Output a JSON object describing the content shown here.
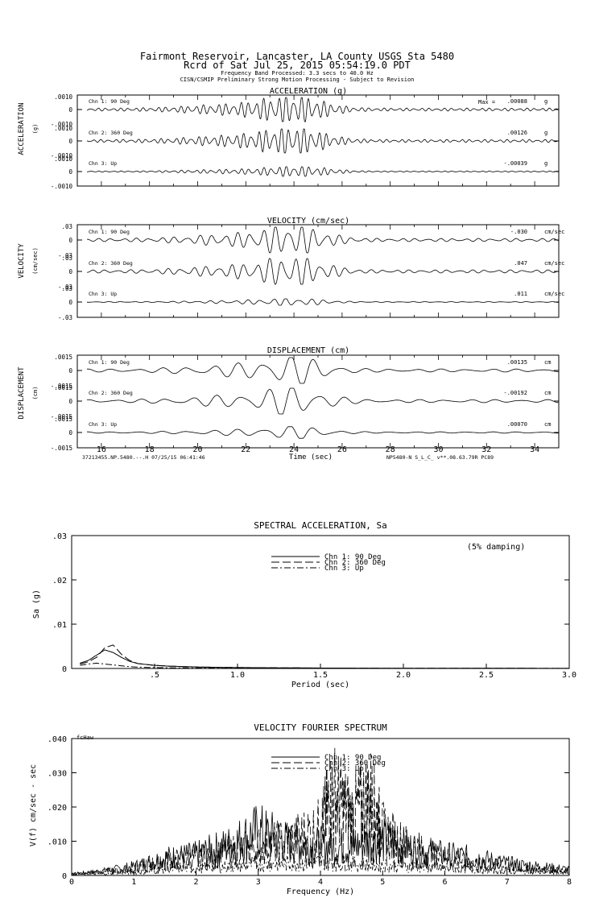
{
  "header": {
    "line1": "Fairmont Reservoir, Lancaster, LA County    USGS Sta 5480",
    "line2": "Rcrd of Sat Jul 25, 2015 05:54:19.0 PDT",
    "line3": "Frequency Band Processed: 3.3 secs to 40.0 Hz",
    "line4": "CISN/CSMIP Preliminary Strong Motion Processing - Subject to Revision"
  },
  "time_axis": {
    "ticks": [
      "16",
      "18",
      "20",
      "22",
      "24",
      "26",
      "28",
      "30",
      "32",
      "34"
    ],
    "xlabel": "Time (sec)",
    "footer_left": "37213455.NP.5480.--.H 07/25/15 06:41:46",
    "footer_right": "NP5480-N  S_L_C_  v**.08.63.79R PC89"
  },
  "colors": {
    "ink": "#000000",
    "background": "#ffffff"
  },
  "chart_data": [
    {
      "type": "line",
      "title": "ACCELERATION (g)",
      "ylabel": "ACCELERATION",
      "yunit": "(g)",
      "max_label": "Max =",
      "channels": [
        {
          "name": "Chn 1: 90 Deg",
          "ticks": [
            ".0010",
            "0",
            "-.0010"
          ],
          "peak": ".00088",
          "unit": "g",
          "peak_time": 24.0,
          "rel_amp": 1.0
        },
        {
          "name": "Chn 2: 360 Deg",
          "ticks": [
            ".0010",
            "0",
            "-.0010"
          ],
          "peak": ".00126",
          "unit": "g",
          "peak_time": 24.0,
          "rel_amp": 1.0
        },
        {
          "name": "Chn 3: Up",
          "ticks": [
            ".0010",
            "0",
            "-.0010"
          ],
          "peak": "-.00039",
          "unit": "g",
          "peak_time": 24.2,
          "rel_amp": 0.4
        }
      ],
      "xlim": [
        15,
        35
      ]
    },
    {
      "type": "line",
      "title": "VELOCITY (cm/sec)",
      "ylabel": "VELOCITY",
      "yunit": "(cm/sec)",
      "channels": [
        {
          "name": "Chn 1: 90 Deg",
          "ticks": [
            ".03",
            "0",
            "-.03"
          ],
          "peak": "-.030",
          "unit": "cm/sec",
          "peak_time": 24.0,
          "rel_amp": 1.0
        },
        {
          "name": "Chn 2: 360 Deg",
          "ticks": [
            ".03",
            "0",
            "-.03"
          ],
          "peak": ".047",
          "unit": "cm/sec",
          "peak_time": 24.0,
          "rel_amp": 1.0
        },
        {
          "name": "Chn 3: Up",
          "ticks": [
            ".03",
            "0",
            "-.03"
          ],
          "peak": ".011",
          "unit": "cm/sec",
          "peak_time": 24.0,
          "rel_amp": 0.25
        }
      ],
      "xlim": [
        15,
        35
      ]
    },
    {
      "type": "line",
      "title": "DISPLACEMENT (cm)",
      "ylabel": "DISPLACEMENT",
      "yunit": "(cm)",
      "channels": [
        {
          "name": "Chn 1: 90 Deg",
          "ticks": [
            ".0015",
            "0",
            "-.0015"
          ],
          "peak": ".00135",
          "unit": "cm",
          "peak_time": 24.0,
          "rel_amp": 1.0
        },
        {
          "name": "Chn 2: 360 Deg",
          "ticks": [
            ".0015",
            "0",
            "-.0015"
          ],
          "peak": "-.00192",
          "unit": "cm",
          "peak_time": 24.0,
          "rel_amp": 1.0
        },
        {
          "name": "Chn 3: Up",
          "ticks": [
            ".0015",
            "0",
            "-.0015"
          ],
          "peak": ".00070",
          "unit": "cm",
          "peak_time": 24.0,
          "rel_amp": 0.45
        }
      ],
      "xlim": [
        15,
        35
      ]
    },
    {
      "type": "line",
      "title": "SPECTRAL ACCELERATION, Sa",
      "ylabel": "Sa (g)",
      "xlabel": "Period (sec)",
      "annotation": "(5% damping)",
      "xlim": [
        0,
        3.0
      ],
      "ylim": [
        0,
        0.03
      ],
      "xticks": [
        ".5",
        "1.0",
        "1.5",
        "2.0",
        "2.5",
        "3.0"
      ],
      "yticks": [
        ".03",
        ".02",
        ".01",
        "0"
      ],
      "series": [
        {
          "name": "Chn 1: 90 Deg",
          "x": [
            0.05,
            0.1,
            0.15,
            0.2,
            0.25,
            0.3,
            0.35,
            0.4,
            0.5,
            0.6,
            0.8,
            1.0,
            1.5,
            2.0,
            3.0
          ],
          "y": [
            0.0012,
            0.0018,
            0.003,
            0.0042,
            0.0036,
            0.0025,
            0.0016,
            0.0011,
            0.0007,
            0.0005,
            0.0003,
            0.0002,
            0.0001,
            5e-05,
            2e-05
          ]
        },
        {
          "name": "Chn 2: 360 Deg",
          "x": [
            0.05,
            0.1,
            0.15,
            0.2,
            0.25,
            0.3,
            0.35,
            0.4,
            0.5,
            0.6,
            0.8,
            1.0,
            1.5,
            2.0,
            3.0
          ],
          "y": [
            0.001,
            0.0015,
            0.0025,
            0.0047,
            0.0053,
            0.0032,
            0.0018,
            0.0011,
            0.0007,
            0.0005,
            0.0003,
            0.0002,
            0.0001,
            5e-05,
            2e-05
          ]
        },
        {
          "name": "Chn 3: Up",
          "x": [
            0.05,
            0.1,
            0.15,
            0.2,
            0.25,
            0.3,
            0.35,
            0.4,
            0.5,
            0.6,
            0.8,
            1.0,
            1.5,
            2.0,
            3.0
          ],
          "y": [
            0.0007,
            0.001,
            0.0012,
            0.001,
            0.0008,
            0.0006,
            0.0004,
            0.0003,
            0.0002,
            0.00015,
            0.0001,
            6e-05,
            3e-05,
            2e-05,
            1e-05
          ]
        }
      ]
    },
    {
      "type": "line",
      "title": "VELOCITY FOURIER SPECTRUM",
      "ylabel": "V(f)   cm/sec - sec",
      "xlabel": "Frequency (Hz)",
      "corner_label": "fcHaw",
      "xlim": [
        0,
        8
      ],
      "ylim": [
        0,
        0.04
      ],
      "xticks": [
        "0",
        "1",
        "2",
        "3",
        "4",
        "5",
        "6",
        "7",
        "8"
      ],
      "yticks": [
        ".040",
        ".030",
        ".020",
        ".010",
        "0"
      ],
      "series": [
        {
          "name": "Chn 1: 90 Deg",
          "x": [
            0,
            0.5,
            1.0,
            1.5,
            2.0,
            2.5,
            3.0,
            3.5,
            4.0,
            4.5,
            5.0,
            5.5,
            6.0,
            6.5,
            7.0,
            7.5,
            8.0
          ],
          "y": [
            0.0005,
            0.0015,
            0.003,
            0.006,
            0.007,
            0.01,
            0.015,
            0.011,
            0.01,
            0.01,
            0.012,
            0.009,
            0.007,
            0.006,
            0.004,
            0.003,
            0.002
          ]
        },
        {
          "name": "Chn 2: 360 Deg",
          "x": [
            0,
            0.5,
            1.0,
            1.5,
            2.0,
            2.5,
            3.0,
            3.5,
            4.0,
            4.2,
            4.5,
            4.8,
            5.0,
            5.5,
            6.0,
            6.5,
            7.0,
            7.5,
            8.0
          ],
          "y": [
            0.0005,
            0.0013,
            0.0025,
            0.005,
            0.006,
            0.008,
            0.01,
            0.012,
            0.016,
            0.028,
            0.02,
            0.027,
            0.015,
            0.009,
            0.006,
            0.004,
            0.003,
            0.002,
            0.0015
          ]
        },
        {
          "name": "Chn 3: Up",
          "x": [
            0,
            0.5,
            1.0,
            1.5,
            2.0,
            2.5,
            3.0,
            3.5,
            4.0,
            4.5,
            5.0,
            5.5,
            6.0,
            6.5,
            7.0,
            7.5,
            8.0
          ],
          "y": [
            0.0003,
            0.0006,
            0.001,
            0.002,
            0.0025,
            0.003,
            0.004,
            0.004,
            0.0045,
            0.004,
            0.0035,
            0.003,
            0.0025,
            0.002,
            0.0015,
            0.001,
            0.0008
          ]
        }
      ]
    }
  ]
}
